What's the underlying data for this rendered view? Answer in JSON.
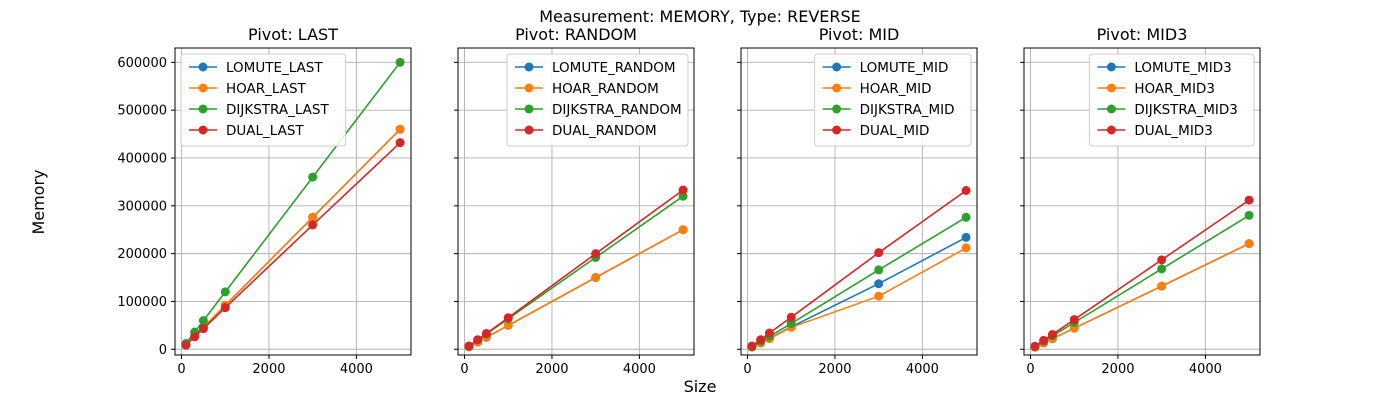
{
  "figure": {
    "suptitle": "Measurement: MEMORY, Type: REVERSE",
    "xlabel": "Size",
    "ylabel": "Memory"
  },
  "colors": {
    "LOMUTE": "#1f77b4",
    "HOAR": "#ff7f0e",
    "DIJKSTRA": "#2ca02c",
    "DUAL": "#d62728"
  },
  "chart_data": [
    {
      "type": "line",
      "title": "Pivot: LAST",
      "x": [
        100,
        300,
        500,
        1000,
        3000,
        5000
      ],
      "xlim": [
        -150,
        5250
      ],
      "ylim": [
        -12000,
        630000
      ],
      "xticks": [
        0,
        2000,
        4000
      ],
      "yticks": [
        0,
        100000,
        200000,
        300000,
        400000,
        500000,
        600000
      ],
      "show_yticklabels": true,
      "grid": true,
      "legend_position": "upper-left",
      "series": [
        {
          "name": "LOMUTE_LAST",
          "key": "LOMUTE",
          "values": [
            9000,
            28000,
            46000,
            92000,
            276000,
            460000
          ]
        },
        {
          "name": "HOAR_LAST",
          "key": "HOAR",
          "values": [
            9000,
            28000,
            46000,
            92000,
            276000,
            460000
          ]
        },
        {
          "name": "DIJKSTRA_LAST",
          "key": "DIJKSTRA",
          "values": [
            12000,
            36000,
            60000,
            120000,
            360000,
            600000
          ]
        },
        {
          "name": "DUAL_LAST",
          "key": "DUAL",
          "values": [
            8600,
            26000,
            43000,
            87000,
            260000,
            432000
          ]
        }
      ]
    },
    {
      "type": "line",
      "title": "Pivot: RANDOM",
      "x": [
        100,
        300,
        500,
        1000,
        3000,
        5000
      ],
      "xlim": [
        -150,
        5250
      ],
      "ylim": [
        -12000,
        630000
      ],
      "xticks": [
        0,
        2000,
        4000
      ],
      "yticks": [
        0,
        100000,
        200000,
        300000,
        400000,
        500000,
        600000
      ],
      "show_yticklabels": false,
      "grid": true,
      "legend_position": "upper-right",
      "series": [
        {
          "name": "LOMUTE_RANDOM",
          "key": "LOMUTE",
          "values": [
            5000,
            15000,
            25000,
            50000,
            150000,
            250000
          ]
        },
        {
          "name": "HOAR_RANDOM",
          "key": "HOAR",
          "values": [
            5000,
            15000,
            25000,
            50000,
            150000,
            250000
          ]
        },
        {
          "name": "DIJKSTRA_RANDOM",
          "key": "DIJKSTRA",
          "values": [
            6500,
            19500,
            32000,
            64000,
            192000,
            320000
          ]
        },
        {
          "name": "DUAL_RANDOM",
          "key": "DUAL",
          "values": [
            6700,
            20000,
            33000,
            66000,
            200000,
            333000
          ]
        }
      ]
    },
    {
      "type": "line",
      "title": "Pivot: MID",
      "x": [
        100,
        300,
        500,
        1000,
        3000,
        5000
      ],
      "xlim": [
        -150,
        5250
      ],
      "ylim": [
        -12000,
        630000
      ],
      "xticks": [
        0,
        2000,
        4000
      ],
      "yticks": [
        0,
        100000,
        200000,
        300000,
        400000,
        500000,
        600000
      ],
      "show_yticklabels": false,
      "grid": true,
      "legend_position": "upper-right",
      "series": [
        {
          "name": "LOMUTE_MID",
          "key": "LOMUTE",
          "values": [
            4600,
            14000,
            23000,
            47000,
            137000,
            234000
          ]
        },
        {
          "name": "HOAR_MID",
          "key": "HOAR",
          "values": [
            4500,
            13000,
            22000,
            46000,
            111000,
            212000
          ]
        },
        {
          "name": "DIJKSTRA_MID",
          "key": "DIJKSTRA",
          "values": [
            5500,
            16500,
            27000,
            54000,
            166000,
            276000
          ]
        },
        {
          "name": "DUAL_MID",
          "key": "DUAL",
          "values": [
            6700,
            20000,
            34000,
            67000,
            202000,
            332000
          ]
        }
      ]
    },
    {
      "type": "line",
      "title": "Pivot: MID3",
      "x": [
        100,
        300,
        500,
        1000,
        3000,
        5000
      ],
      "xlim": [
        -150,
        5250
      ],
      "ylim": [
        -12000,
        630000
      ],
      "xticks": [
        0,
        2000,
        4000
      ],
      "yticks": [
        0,
        100000,
        200000,
        300000,
        400000,
        500000,
        600000
      ],
      "show_yticklabels": false,
      "grid": true,
      "legend_position": "upper-right",
      "series": [
        {
          "name": "LOMUTE_MID3",
          "key": "LOMUTE",
          "values": [
            4400,
            13000,
            22000,
            44000,
            132000,
            221000
          ]
        },
        {
          "name": "HOAR_MID3",
          "key": "HOAR",
          "values": [
            4400,
            13000,
            22000,
            44000,
            132000,
            221000
          ]
        },
        {
          "name": "DIJKSTRA_MID3",
          "key": "DIJKSTRA",
          "values": [
            5600,
            17000,
            28000,
            56000,
            168000,
            280000
          ]
        },
        {
          "name": "DUAL_MID3",
          "key": "DUAL",
          "values": [
            6200,
            18700,
            31000,
            62000,
            187000,
            312000
          ]
        }
      ]
    }
  ]
}
